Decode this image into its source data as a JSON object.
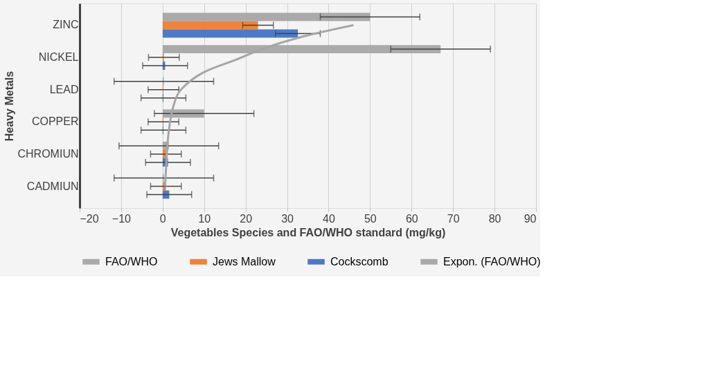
{
  "chart_data": {
    "type": "bar",
    "orientation": "horizontal",
    "xlabel": "Vegetables Species and FAO/WHO standard (mg/kg)",
    "ylabel": "Heavy Metals",
    "categories": [
      "ZINC",
      "NICKEL",
      "LEAD",
      "COPPER",
      "CHROMIUN",
      "CADMIUN"
    ],
    "series": [
      {
        "name": "FAO/WHO",
        "color": "#a5a5a5",
        "values": [
          50,
          67,
          0.3,
          10,
          1.5,
          0.3
        ],
        "errors": [
          12,
          12,
          12,
          12,
          12,
          12
        ]
      },
      {
        "name": "Jews Mallow",
        "color": "#ed7d31",
        "values": [
          23,
          0.3,
          0.2,
          0.2,
          0.8,
          0.8
        ],
        "errors": [
          3.7,
          3.7,
          3.7,
          3.7,
          3.7,
          3.7
        ]
      },
      {
        "name": "Cockscomb",
        "color": "#4472c4",
        "values": [
          32.6,
          0.6,
          0.2,
          0.2,
          1.3,
          1.6
        ],
        "errors": [
          5.4,
          5.4,
          5.4,
          5.4,
          5.4,
          5.4
        ]
      },
      {
        "name": "Expon. (FAO/WHO)",
        "type": "line",
        "color": "#a5a5a5",
        "values": [
          46,
          19,
          4.4,
          1.8,
          1.0,
          0.6
        ]
      }
    ],
    "xlim": [
      -20,
      90
    ],
    "xticks": [
      -20,
      -10,
      0,
      10,
      20,
      30,
      40,
      50,
      60,
      70,
      80,
      90
    ],
    "grid": "x",
    "legend": "bottom"
  }
}
